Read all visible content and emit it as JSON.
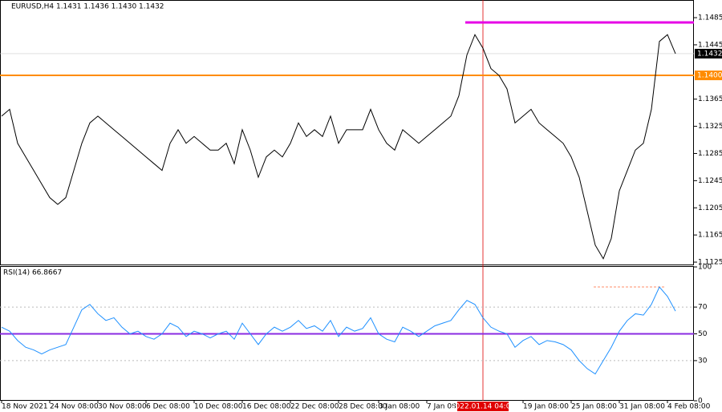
{
  "chart_data": [
    {
      "type": "line",
      "title": "EURUSD,H4 1.1431 1.1436 1.1430 1.1432",
      "categories": [
        "18 Nov 2021",
        null,
        null,
        null,
        null,
        null,
        "24 Nov 08:00",
        null,
        null,
        null,
        null,
        null,
        "30 Nov 08:00",
        null,
        null,
        null,
        null,
        null,
        "6 Dec 08:00",
        null,
        null,
        null,
        null,
        null,
        "10 Dec 08:00",
        null,
        null,
        null,
        null,
        null,
        "16 Dec 08:00",
        null,
        null,
        null,
        null,
        null,
        "22 Dec 08:00",
        null,
        null,
        null,
        null,
        null,
        "28 Dec 08:00",
        null,
        null,
        null,
        null,
        "3 Jan 08:00",
        null,
        null,
        null,
        null,
        null,
        "7 Jan 08:00",
        null,
        null,
        null,
        null,
        null,
        null,
        "2022.01.14 04:00",
        null,
        null,
        null,
        null,
        "19 Jan 08:00",
        null,
        null,
        null,
        null,
        null,
        "25 Jan 08:00",
        null,
        null,
        null,
        null,
        null,
        "31 Jan 08:00",
        null,
        null,
        null,
        null,
        null,
        "4 Feb 08:00",
        null
      ],
      "series": [
        {
          "name": "EURUSD,H4",
          "color": "#000000",
          "values": [
            1.134,
            1.135,
            1.13,
            1.128,
            1.126,
            1.124,
            1.122,
            1.121,
            1.122,
            1.126,
            1.13,
            1.133,
            1.134,
            1.133,
            1.132,
            1.131,
            1.13,
            1.129,
            1.128,
            1.127,
            1.126,
            1.13,
            1.132,
            1.13,
            1.131,
            1.13,
            1.129,
            1.129,
            1.13,
            1.127,
            1.132,
            1.129,
            1.125,
            1.128,
            1.129,
            1.128,
            1.13,
            1.133,
            1.131,
            1.132,
            1.131,
            1.134,
            1.13,
            1.132,
            1.132,
            1.132,
            1.135,
            1.132,
            1.13,
            1.129,
            1.132,
            1.131,
            1.13,
            1.131,
            1.132,
            1.133,
            1.134,
            1.137,
            1.143,
            1.146,
            1.144,
            1.141,
            1.14,
            1.138,
            1.133,
            1.134,
            1.135,
            1.133,
            1.132,
            1.131,
            1.13,
            1.128,
            1.125,
            1.12,
            1.115,
            1.113,
            1.116,
            1.123,
            1.126,
            1.129,
            1.13,
            1.135,
            1.145,
            1.146,
            1.1432
          ]
        }
      ],
      "ylim": [
        1.11215,
        1.1511
      ],
      "yticks": [
        1.1485,
        1.1445,
        1.1365,
        1.1325,
        1.1285,
        1.1245,
        1.1205,
        1.1165,
        1.1125
      ],
      "current_price": {
        "value": 1.1432,
        "label": "1.1432"
      },
      "level_line": {
        "value": 1.14,
        "label": "1.1400",
        "color": "#ff8c00"
      },
      "resistance_line": {
        "value": 1.1478,
        "color": "#e600e6"
      },
      "highlight_category": 60
    },
    {
      "type": "line",
      "title": "RSI(14) 66.8667",
      "series": [
        {
          "name": "RSI(14)",
          "color": "#1e90ff",
          "values": [
            55,
            52,
            45,
            40,
            38,
            35,
            38,
            40,
            42,
            55,
            68,
            72,
            65,
            60,
            62,
            55,
            50,
            52,
            48,
            46,
            50,
            58,
            55,
            48,
            52,
            50,
            47,
            50,
            52,
            46,
            58,
            50,
            42,
            50,
            55,
            52,
            55,
            60,
            54,
            56,
            52,
            60,
            48,
            55,
            52,
            54,
            62,
            50,
            46,
            44,
            55,
            52,
            48,
            52,
            56,
            58,
            60,
            68,
            75,
            72,
            62,
            55,
            52,
            50,
            40,
            45,
            48,
            42,
            45,
            44,
            42,
            38,
            30,
            24,
            20,
            30,
            40,
            52,
            60,
            65,
            64,
            72,
            85,
            78,
            67
          ]
        }
      ],
      "ylim": [
        0,
        100
      ],
      "yticks": [
        100,
        70,
        50,
        30,
        0
      ],
      "level_line": {
        "value": 50,
        "color": "#8a2be2"
      },
      "peak_line": {
        "value": 85,
        "color": "#ff8c69"
      }
    }
  ]
}
